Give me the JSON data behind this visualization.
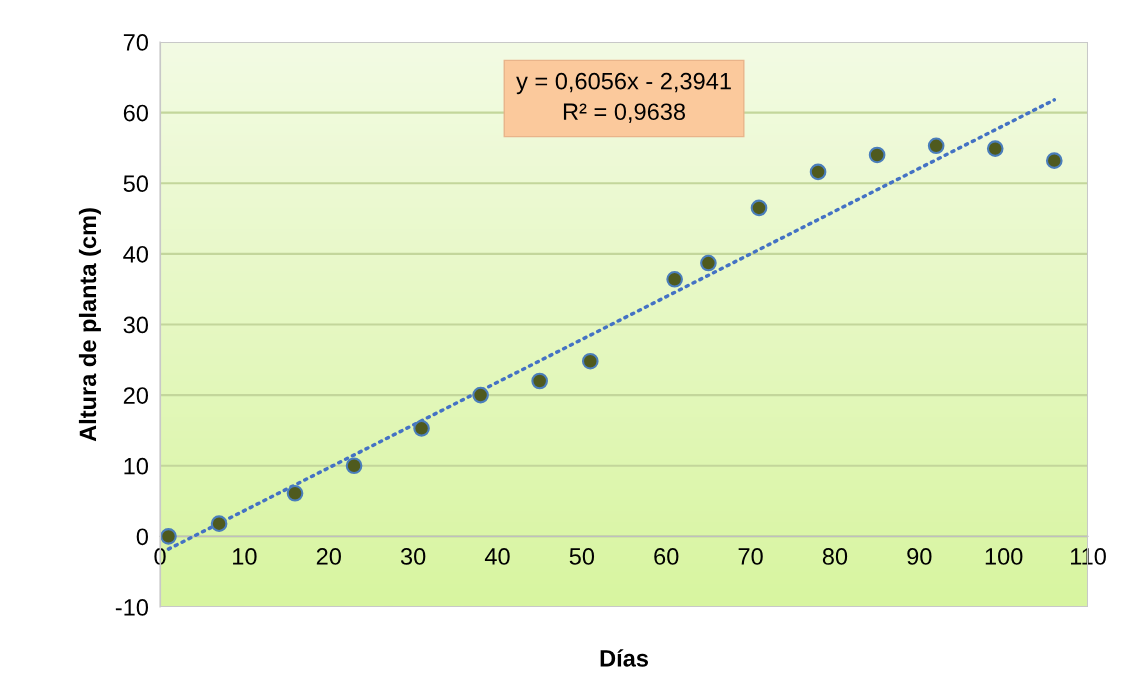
{
  "chart_data": {
    "type": "scatter",
    "xlabel": "Días",
    "ylabel": "Altura de planta (cm)",
    "annotations": [
      "y = 0,6056x - 2,3941\nR² = 0,9638"
    ],
    "series": [
      {
        "color": "#4f5a1e",
        "marker": "circle",
        "x": [
          1,
          7,
          16,
          23,
          31,
          38,
          45,
          51,
          61,
          65,
          71,
          78,
          85,
          92,
          99,
          106
        ],
        "values": [
          0,
          1.8,
          6.1,
          10.0,
          15.3,
          20.0,
          22.0,
          24.8,
          36.4,
          38.7,
          46.5,
          51.6,
          54.0,
          55.3,
          54.9,
          53.2
        ]
      },
      {
        "type": "line",
        "color": "#4472c4",
        "line_style": "dotted",
        "x": [
          1,
          106
        ],
        "values": [
          -1.8,
          61.8
        ]
      }
    ],
    "xlim": [
      0,
      110
    ],
    "ylim": [
      -10,
      70
    ],
    "xticks": [
      0,
      10,
      20,
      30,
      40,
      50,
      60,
      70,
      80,
      90,
      100,
      110
    ],
    "yticks": [
      -10,
      0,
      10,
      20,
      30,
      40,
      50,
      60,
      70
    ],
    "grid": "y"
  }
}
